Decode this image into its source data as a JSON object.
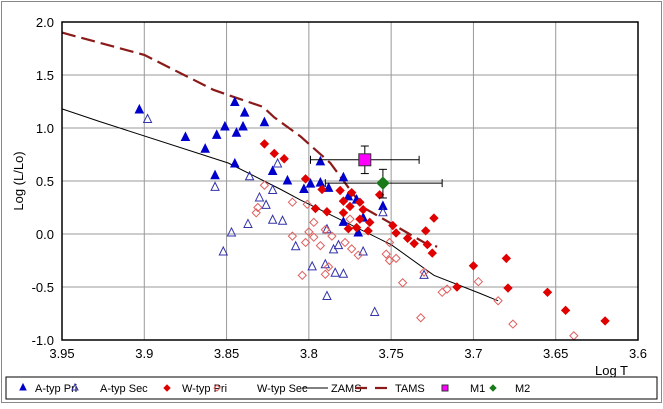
{
  "chart_data": {
    "type": "scatter",
    "title": "",
    "xlabel": "Log T",
    "ylabel": "Log (L/Lo)",
    "xlim": [
      3.95,
      3.6
    ],
    "ylim": [
      -1.0,
      2.0
    ],
    "x_reversed": true,
    "grid": true,
    "legend_position": "bottom",
    "x_ticks": [
      "3.95",
      "3.9",
      "3.85",
      "3.8",
      "3.75",
      "3.7",
      "3.65",
      "3.6"
    ],
    "x_tick_values": [
      3.95,
      3.9,
      3.85,
      3.8,
      3.75,
      3.7,
      3.65,
      3.6
    ],
    "y_ticks": [
      "2.0",
      "1.5",
      "1.0",
      "0.5",
      "0.0",
      "-0.5",
      "-1.0"
    ],
    "y_tick_values": [
      2.0,
      1.5,
      1.0,
      0.5,
      0.0,
      -0.5,
      -1.0
    ],
    "series": [
      {
        "name": "A-typ Pri",
        "marker": "triangle-filled",
        "color": "#0000cc",
        "points": [
          [
            3.903,
            1.17
          ],
          [
            3.845,
            1.24
          ],
          [
            3.839,
            1.14
          ],
          [
            3.827,
            1.05
          ],
          [
            3.875,
            0.91
          ],
          [
            3.856,
            0.93
          ],
          [
            3.851,
            1.01
          ],
          [
            3.844,
            0.95
          ],
          [
            3.84,
            1.01
          ],
          [
            3.863,
            0.8
          ],
          [
            3.845,
            0.66
          ],
          [
            3.857,
            0.55
          ],
          [
            3.822,
            0.59
          ],
          [
            3.813,
            0.5
          ],
          [
            3.793,
            0.68
          ],
          [
            3.803,
            0.42
          ],
          [
            3.799,
            0.47
          ],
          [
            3.793,
            0.48
          ],
          [
            3.788,
            0.43
          ],
          [
            3.779,
            0.53
          ],
          [
            3.776,
            0.35
          ],
          [
            3.771,
            0.32
          ],
          [
            3.755,
            0.26
          ],
          [
            3.767,
            0.15
          ],
          [
            3.779,
            0.11
          ],
          [
            3.77,
            0.01
          ]
        ]
      },
      {
        "name": "A-typ Sec",
        "marker": "triangle-open",
        "color": "#3333aa",
        "points": [
          [
            3.898,
            1.08
          ],
          [
            3.819,
            0.66
          ],
          [
            3.836,
            0.54
          ],
          [
            3.857,
            0.44
          ],
          [
            3.822,
            0.41
          ],
          [
            3.83,
            0.34
          ],
          [
            3.826,
            0.27
          ],
          [
            3.837,
            0.09
          ],
          [
            3.822,
            0.13
          ],
          [
            3.816,
            0.12
          ],
          [
            3.847,
            0.01
          ],
          [
            3.852,
            -0.17
          ],
          [
            3.808,
            -0.12
          ],
          [
            3.755,
            0.2
          ],
          [
            3.789,
            0.04
          ],
          [
            3.782,
            -0.11
          ],
          [
            3.785,
            -0.15
          ],
          [
            3.767,
            -0.17
          ],
          [
            3.798,
            -0.31
          ],
          [
            3.79,
            -0.29
          ],
          [
            3.784,
            -0.37
          ],
          [
            3.779,
            -0.38
          ],
          [
            3.789,
            -0.59
          ],
          [
            3.76,
            -0.74
          ],
          [
            3.73,
            -0.39
          ]
        ]
      },
      {
        "name": "W-typ Pri",
        "marker": "diamond-filled",
        "color": "#e00000",
        "points": [
          [
            3.827,
            0.85
          ],
          [
            3.821,
            0.76
          ],
          [
            3.815,
            0.71
          ],
          [
            3.802,
            0.52
          ],
          [
            3.792,
            0.42
          ],
          [
            3.781,
            0.41
          ],
          [
            3.774,
            0.39
          ],
          [
            3.757,
            0.37
          ],
          [
            3.779,
            0.31
          ],
          [
            3.769,
            0.3
          ],
          [
            3.775,
            0.26
          ],
          [
            3.767,
            0.23
          ],
          [
            3.796,
            0.24
          ],
          [
            3.789,
            0.21
          ],
          [
            3.779,
            0.2
          ],
          [
            3.769,
            0.14
          ],
          [
            3.763,
            0.11
          ],
          [
            3.776,
            0.05
          ],
          [
            3.764,
            0.03
          ],
          [
            3.771,
            0.06
          ],
          [
            3.749,
            0.08
          ],
          [
            3.747,
            0.01
          ],
          [
            3.74,
            -0.04
          ],
          [
            3.736,
            -0.09
          ],
          [
            3.729,
            0.03
          ],
          [
            3.724,
            0.15
          ],
          [
            3.728,
            -0.1
          ],
          [
            3.725,
            -0.18
          ],
          [
            3.71,
            -0.5
          ],
          [
            3.7,
            -0.3
          ],
          [
            3.68,
            -0.23
          ],
          [
            3.679,
            -0.51
          ],
          [
            3.655,
            -0.55
          ],
          [
            3.644,
            -0.72
          ],
          [
            3.62,
            -0.82
          ]
        ]
      },
      {
        "name": "W-typ Sec",
        "marker": "diamond-open",
        "color": "#e06060",
        "points": [
          [
            3.827,
            0.46
          ],
          [
            3.81,
            0.3
          ],
          [
            3.831,
            0.25
          ],
          [
            3.832,
            0.2
          ],
          [
            3.81,
            -0.02
          ],
          [
            3.801,
            0.28
          ],
          [
            3.797,
            0.11
          ],
          [
            3.8,
            0.02
          ],
          [
            3.797,
            -0.03
          ],
          [
            3.79,
            0.04
          ],
          [
            3.793,
            -0.11
          ],
          [
            3.802,
            -0.08
          ],
          [
            3.786,
            -0.02
          ],
          [
            3.778,
            -0.08
          ],
          [
            3.774,
            -0.14
          ],
          [
            3.77,
            -0.2
          ],
          [
            3.775,
            0.14
          ],
          [
            3.751,
            -0.08
          ],
          [
            3.753,
            -0.19
          ],
          [
            3.751,
            -0.25
          ],
          [
            3.747,
            -0.23
          ],
          [
            3.804,
            -0.39
          ],
          [
            3.79,
            -0.38
          ],
          [
            3.788,
            -0.31
          ],
          [
            3.743,
            -0.46
          ],
          [
            3.73,
            -0.36
          ],
          [
            3.732,
            -0.79
          ],
          [
            3.719,
            -0.55
          ],
          [
            3.716,
            -0.52
          ],
          [
            3.697,
            -0.45
          ],
          [
            3.685,
            -0.63
          ],
          [
            3.676,
            -0.85
          ],
          [
            3.639,
            -0.96
          ]
        ]
      },
      {
        "name": "ZAMS",
        "marker": "line-solid",
        "color": "#000000",
        "points": [
          [
            3.95,
            1.18
          ],
          [
            3.927,
            1.06
          ],
          [
            3.849,
            0.67
          ],
          [
            3.817,
            0.42
          ],
          [
            3.805,
            0.32
          ],
          [
            3.75,
            -0.1
          ],
          [
            3.724,
            -0.39
          ],
          [
            3.696,
            -0.56
          ],
          [
            3.685,
            -0.63
          ]
        ]
      },
      {
        "name": "TAMS",
        "marker": "line-dashed",
        "color": "#8b1a1a",
        "points": [
          [
            3.95,
            1.9
          ],
          [
            3.9,
            1.69
          ],
          [
            3.858,
            1.36
          ],
          [
            3.845,
            1.29
          ],
          [
            3.828,
            1.2
          ],
          [
            3.821,
            1.1
          ],
          [
            3.805,
            0.92
          ],
          [
            3.787,
            0.67
          ],
          [
            3.767,
            0.25
          ],
          [
            3.75,
            0.1
          ],
          [
            3.73,
            -0.08
          ],
          [
            3.722,
            -0.12
          ]
        ]
      },
      {
        "name": "M1",
        "marker": "square",
        "color": "#ff00ff",
        "points": [
          [
            3.766,
            0.7
          ]
        ],
        "xerr": [
          3.799,
          3.733
        ],
        "yerr": [
          0.57,
          0.83
        ]
      },
      {
        "name": "M2",
        "marker": "diamond-filled",
        "color": "#1a7a1a",
        "points": [
          [
            3.755,
            0.48
          ]
        ],
        "xerr": [
          3.79,
          3.719
        ],
        "yerr": [
          0.34,
          0.61
        ]
      }
    ]
  }
}
